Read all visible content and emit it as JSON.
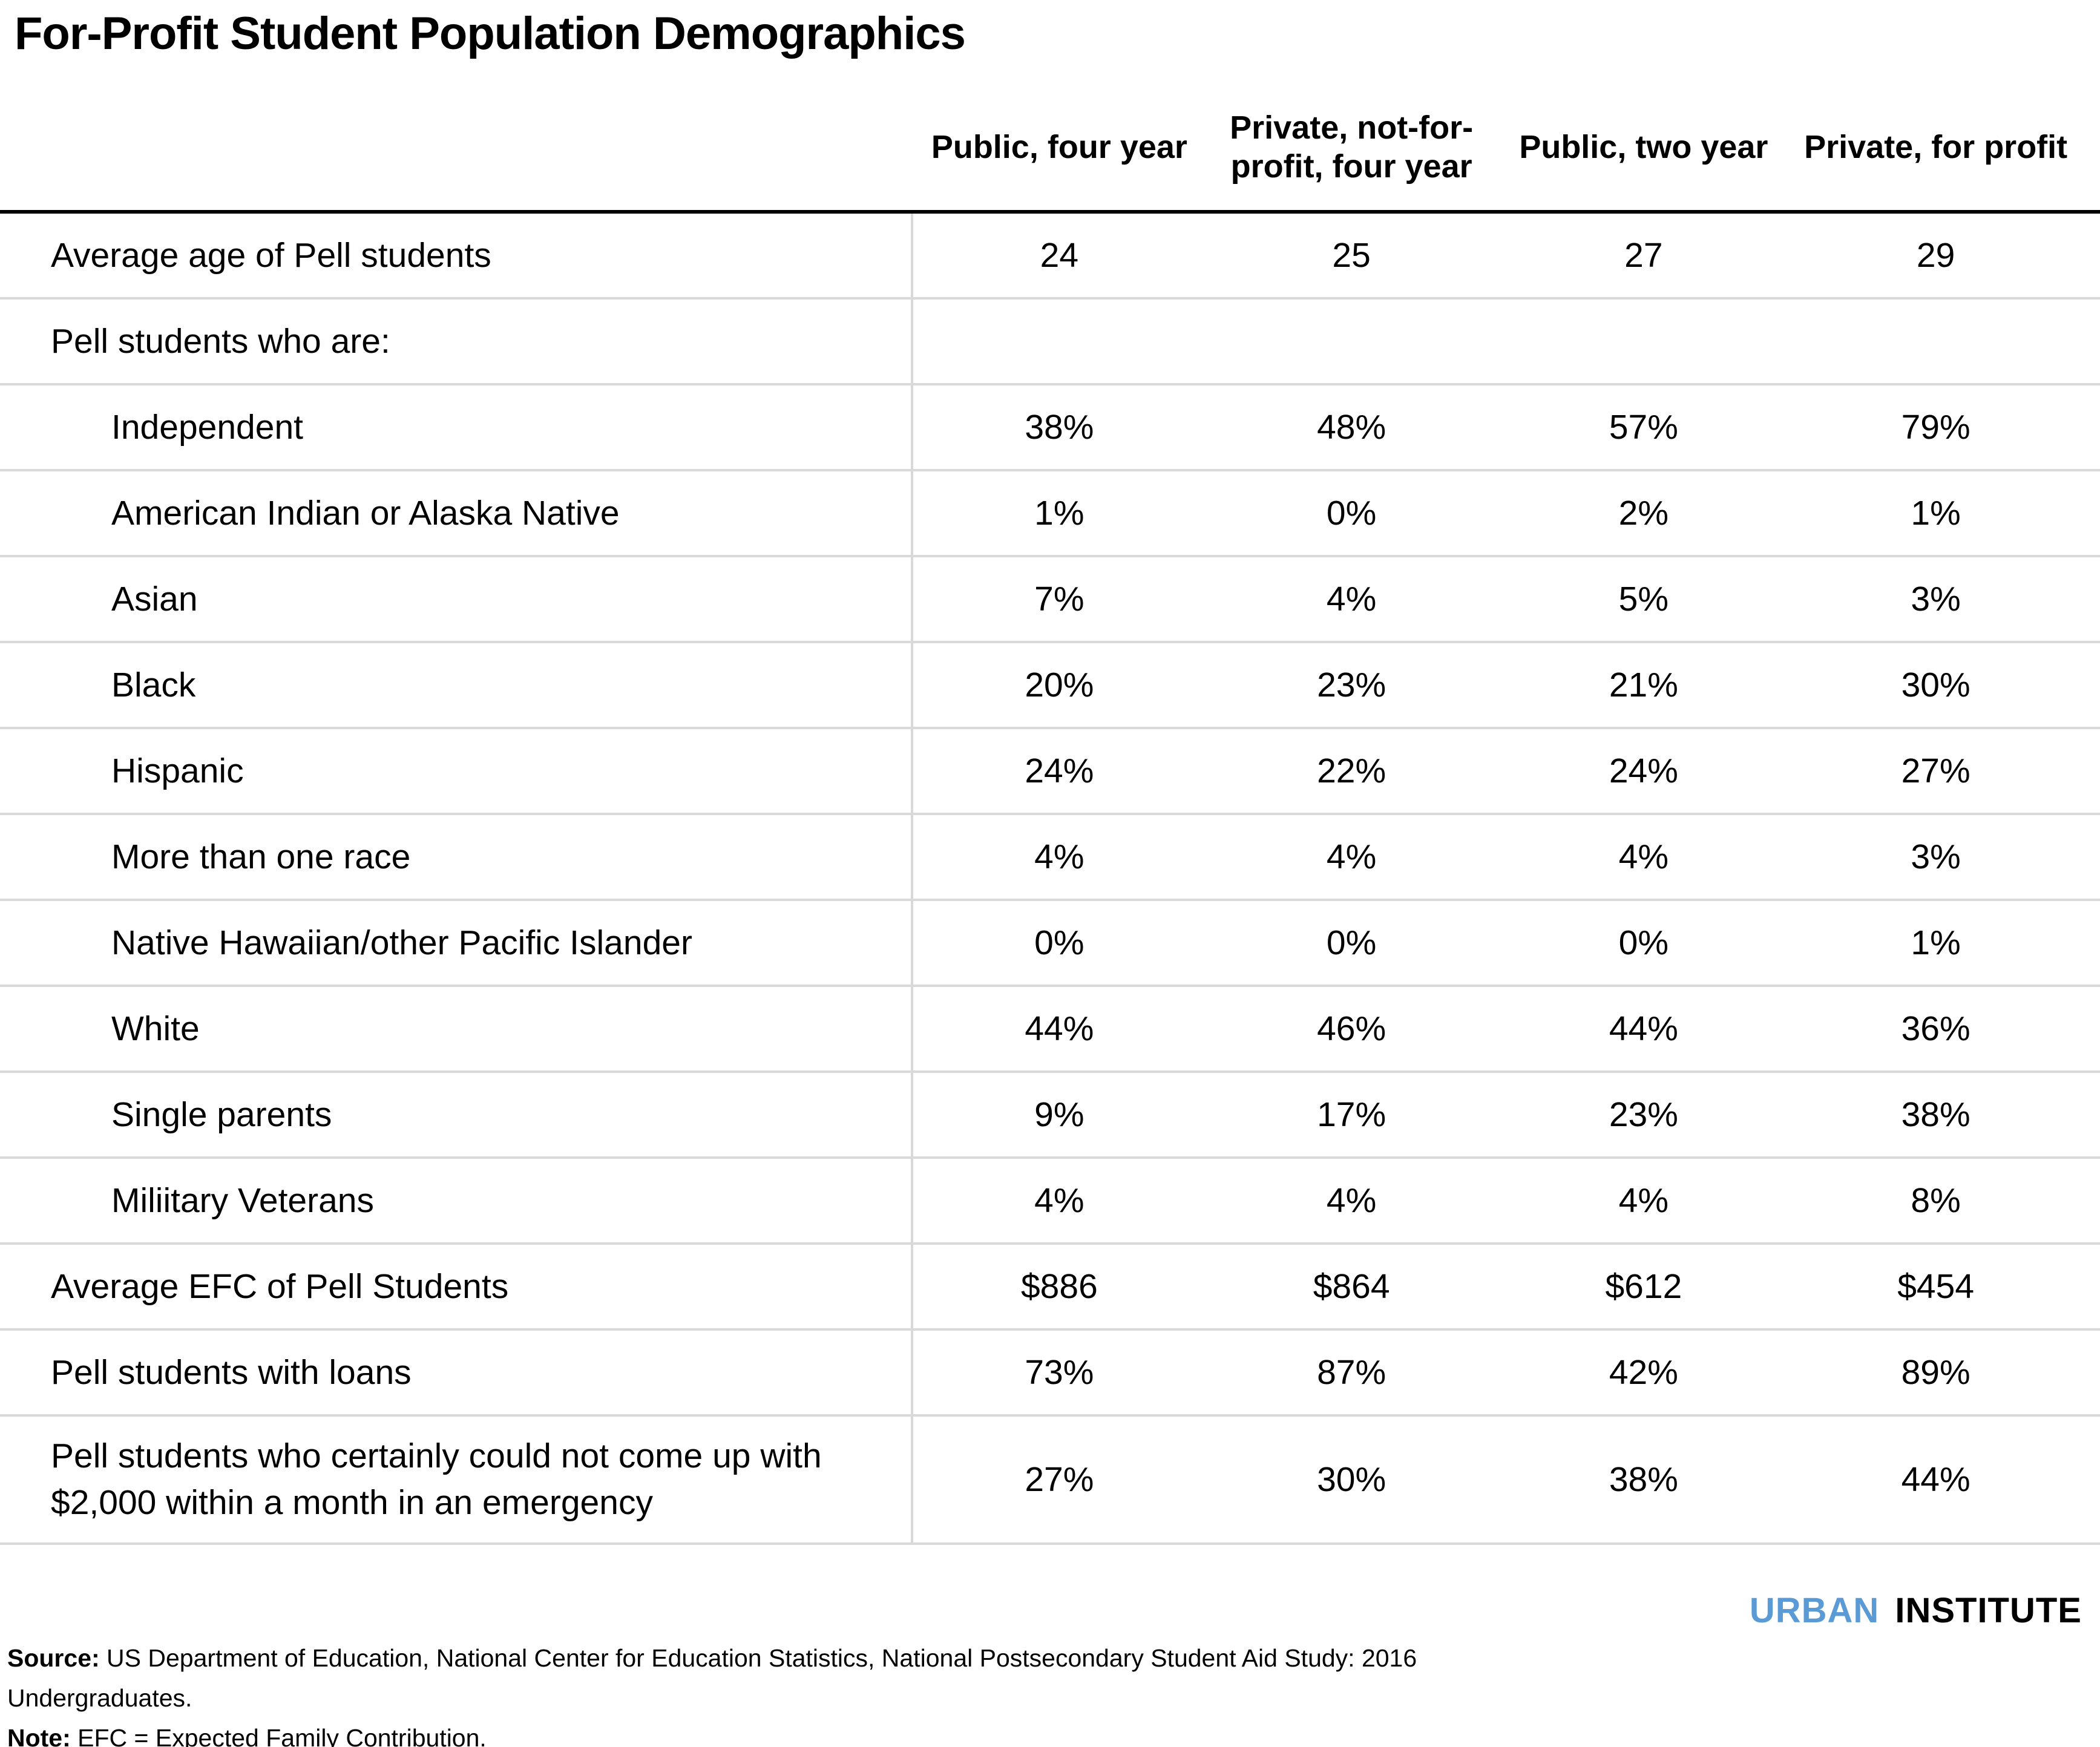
{
  "chart_data": {
    "type": "table",
    "title": "For-Profit Student Population Demographics",
    "columns": [
      "Public, four year",
      "Private, not-for-profit, four year",
      "Public, two year",
      "Private, for profit"
    ],
    "rows": [
      {
        "label": "Average age of Pell students",
        "indent": false,
        "values": [
          "24",
          "25",
          "27",
          "29"
        ]
      },
      {
        "label": "Pell students who are:",
        "indent": false,
        "values": [
          "",
          "",
          "",
          ""
        ]
      },
      {
        "label": "Independent",
        "indent": true,
        "values": [
          "38%",
          "48%",
          "57%",
          "79%"
        ]
      },
      {
        "label": "American Indian or Alaska Native",
        "indent": true,
        "values": [
          "1%",
          "0%",
          "2%",
          "1%"
        ]
      },
      {
        "label": "Asian",
        "indent": true,
        "values": [
          "7%",
          "4%",
          "5%",
          "3%"
        ]
      },
      {
        "label": "Black",
        "indent": true,
        "values": [
          "20%",
          "23%",
          "21%",
          "30%"
        ]
      },
      {
        "label": "Hispanic",
        "indent": true,
        "values": [
          "24%",
          "22%",
          "24%",
          "27%"
        ]
      },
      {
        "label": "More than one race",
        "indent": true,
        "values": [
          "4%",
          "4%",
          "4%",
          "3%"
        ]
      },
      {
        "label": "Native Hawaiian/other Pacific Islander",
        "indent": true,
        "values": [
          "0%",
          "0%",
          "0%",
          "1%"
        ]
      },
      {
        "label": "White",
        "indent": true,
        "values": [
          "44%",
          "46%",
          "44%",
          "36%"
        ]
      },
      {
        "label": "Single parents",
        "indent": true,
        "values": [
          "9%",
          "17%",
          "23%",
          "38%"
        ]
      },
      {
        "label": "Miliitary Veterans",
        "indent": true,
        "values": [
          "4%",
          "4%",
          "4%",
          "8%"
        ]
      },
      {
        "label": "Average EFC of Pell Students",
        "indent": false,
        "values": [
          "$886",
          "$864",
          "$612",
          "$454"
        ]
      },
      {
        "label": "Pell students with loans",
        "indent": false,
        "values": [
          "73%",
          "87%",
          "42%",
          "89%"
        ]
      },
      {
        "label": "Pell students who certainly could not come up with $2,000 within a month in an emergency",
        "indent": false,
        "values": [
          "27%",
          "30%",
          "38%",
          "44%"
        ]
      }
    ],
    "layout_hints": {
      "grid": "horizontal separators only, single vertical divider after label column",
      "legend_position": "none"
    }
  },
  "footer": {
    "source_label": "Source:",
    "source_line1": " US Department of Education, National Center for Education Statistics, National Postsecondary Student Aid Study: 2016",
    "source_line2": "Undergraduates.",
    "note_label": "Note:",
    "note_text": " EFC = Expected Family Contribution.",
    "logo_part1": "URBAN",
    "logo_part2": "INSTITUTE"
  },
  "colors": {
    "logo_blue": "#5b9bd5",
    "separator_gray": "#d9d9d9",
    "header_rule_black": "#000000",
    "text": "#000000",
    "background": "#ffffff"
  }
}
